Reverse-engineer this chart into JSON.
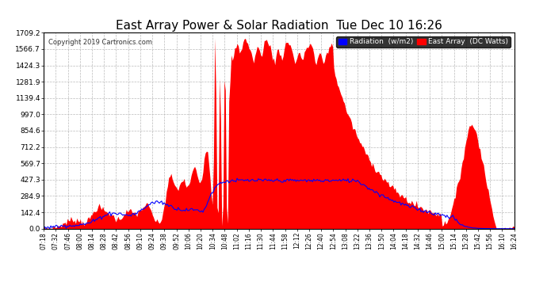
{
  "title": "East Array Power & Solar Radiation  Tue Dec 10 16:26",
  "copyright": "Copyright 2019 Cartronics.com",
  "legend_radiation": "Radiation  (w/m2)",
  "legend_east_array": "East Array  (DC Watts)",
  "y_ticks": [
    0.0,
    142.4,
    284.9,
    427.3,
    569.7,
    712.2,
    854.6,
    997.0,
    1139.4,
    1281.9,
    1424.3,
    1566.7,
    1709.2
  ],
  "x_labels": [
    "07:18",
    "07:32",
    "07:46",
    "08:00",
    "08:14",
    "08:28",
    "08:42",
    "08:56",
    "09:10",
    "09:24",
    "09:38",
    "09:52",
    "10:06",
    "10:20",
    "10:34",
    "10:48",
    "11:02",
    "11:16",
    "11:30",
    "11:44",
    "11:58",
    "12:12",
    "12:26",
    "12:40",
    "12:54",
    "13:08",
    "13:22",
    "13:36",
    "13:50",
    "14:04",
    "14:18",
    "14:32",
    "14:46",
    "15:00",
    "15:14",
    "15:28",
    "15:42",
    "15:56",
    "16:10",
    "16:24"
  ],
  "bg_color": "#ffffff",
  "grid_color": "#bbbbbb",
  "red_fill_color": "#ff0000",
  "blue_line_color": "#0000ff",
  "title_color": "#000000",
  "title_fontsize": 11,
  "axis_bg": "#ffffff",
  "legend_radiation_bg": "#0000ff",
  "legend_east_bg": "#ff0000",
  "legend_text_color": "#ffffff",
  "ymax": 1709.2,
  "ymin": 0.0
}
